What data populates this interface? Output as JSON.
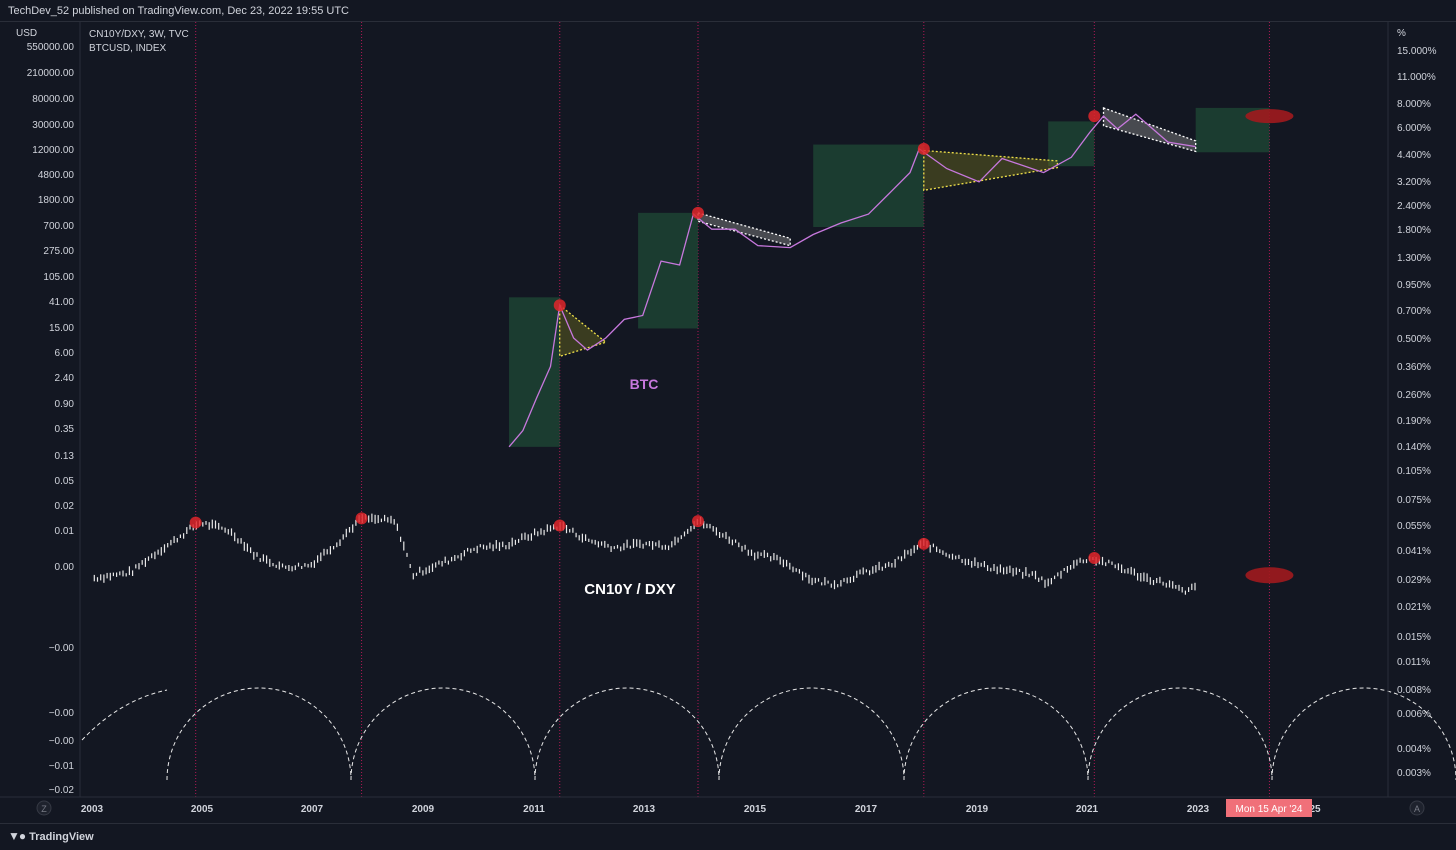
{
  "header": {
    "published_text": "TechDev_52 published on TradingView.com, Dec 23, 2022 19:55 UTC"
  },
  "legend": {
    "line1": "CN10Y/DXY, 3W, TVC",
    "line2": "BTCUSD, INDEX"
  },
  "footer": {
    "brand": "TradingView",
    "brand_icon": "tradingview-logo-icon"
  },
  "axes": {
    "left_unit": "USD",
    "right_unit": "%",
    "left_ticks": [
      "550000.00",
      "210000.00",
      "80000.00",
      "30000.00",
      "12000.00",
      "4800.00",
      "1800.00",
      "700.00",
      "275.00",
      "105.00",
      "41.00",
      "15.00",
      "6.00",
      "2.40",
      "0.90",
      "0.35",
      "0.13",
      "0.05",
      "0.02",
      "0.01",
      "0.00",
      "−0.00",
      "−0.00",
      "−0.00",
      "−0.01",
      "−0.02"
    ],
    "right_ticks": [
      "15.000%",
      "11.000%",
      "8.000%",
      "6.000%",
      "4.400%",
      "3.200%",
      "2.400%",
      "1.800%",
      "1.300%",
      "0.950%",
      "0.700%",
      "0.500%",
      "0.360%",
      "0.260%",
      "0.190%",
      "0.140%",
      "0.105%",
      "0.075%",
      "0.055%",
      "0.041%",
      "0.029%",
      "0.021%",
      "0.015%",
      "0.011%",
      "0.008%",
      "0.006%",
      "0.004%",
      "0.003%"
    ],
    "x_ticks": [
      "2003",
      "2005",
      "2007",
      "2009",
      "2011",
      "2013",
      "2015",
      "2017",
      "2019",
      "2021",
      "2023",
      "25"
    ],
    "crosshair_label": "Mon 15 Apr '24",
    "z_button": "Z",
    "a_button": "A"
  },
  "annotations": {
    "btc_label": "BTC",
    "cn10y_label": "CN10Y / DXY"
  },
  "colors": {
    "background": "#131722",
    "btc_line": "#c778dd",
    "cn10y_bars": "#e8e8e8",
    "green_box": "#1f4a35",
    "peak_marker": "#e0262a",
    "crosshair_badge": "#f07079",
    "vertical_line": "#c2185b"
  },
  "chart_data": [
    {
      "type": "line",
      "name": "BTC",
      "scale": "log",
      "x": [
        "2010-07",
        "2010-10",
        "2011-01",
        "2011-04",
        "2011-06",
        "2011-09",
        "2011-12",
        "2012-04",
        "2012-08",
        "2012-12",
        "2013-04",
        "2013-08",
        "2013-11",
        "2014-03",
        "2014-08",
        "2015-01",
        "2015-08",
        "2016-01",
        "2016-07",
        "2017-01",
        "2017-06",
        "2017-10",
        "2017-12",
        "2018-06",
        "2019-01",
        "2019-06",
        "2020-03",
        "2020-09",
        "2021-01",
        "2021-04",
        "2021-07",
        "2021-11",
        "2022-06",
        "2022-12"
      ],
      "y": [
        0.05,
        0.1,
        0.4,
        1.5,
        20,
        5,
        3,
        5,
        11,
        13,
        130,
        110,
        950,
        500,
        500,
        250,
        230,
        400,
        650,
        950,
        2500,
        5500,
        15000,
        6500,
        3700,
        10000,
        5500,
        10500,
        30000,
        60000,
        35000,
        65000,
        20000,
        16500
      ]
    },
    {
      "type": "bar",
      "name": "CN10Y/DXY",
      "x": [
        "2003-01",
        "2003-09",
        "2004-06",
        "2004-12",
        "2005-06",
        "2005-12",
        "2006-06",
        "2006-12",
        "2007-06",
        "2007-11",
        "2008-06",
        "2008-10",
        "2009-06",
        "2009-12",
        "2010-06",
        "2010-12",
        "2011-06",
        "2011-12",
        "2012-06",
        "2012-12",
        "2013-06",
        "2013-12",
        "2014-06",
        "2014-12",
        "2015-06",
        "2016-01",
        "2016-06",
        "2016-12",
        "2017-06",
        "2018-01",
        "2018-06",
        "2019-01",
        "2019-06",
        "2020-01",
        "2020-04",
        "2020-09",
        "2021-01",
        "2021-06",
        "2022-01",
        "2022-06",
        "2022-10",
        "2022-12"
      ],
      "y": [
        0.029,
        0.031,
        0.045,
        0.057,
        0.052,
        0.038,
        0.033,
        0.034,
        0.045,
        0.06,
        0.058,
        0.03,
        0.036,
        0.042,
        0.043,
        0.049,
        0.055,
        0.046,
        0.042,
        0.044,
        0.043,
        0.058,
        0.048,
        0.039,
        0.036,
        0.028,
        0.027,
        0.031,
        0.034,
        0.044,
        0.039,
        0.034,
        0.032,
        0.03,
        0.027,
        0.034,
        0.037,
        0.034,
        0.029,
        0.027,
        0.024,
        0.027
      ]
    },
    {
      "type": "table",
      "name": "cycle_peaks",
      "x": [
        "2004-11",
        "2007-11",
        "2011-06",
        "2013-12",
        "2018-01",
        "2021-02"
      ]
    }
  ]
}
